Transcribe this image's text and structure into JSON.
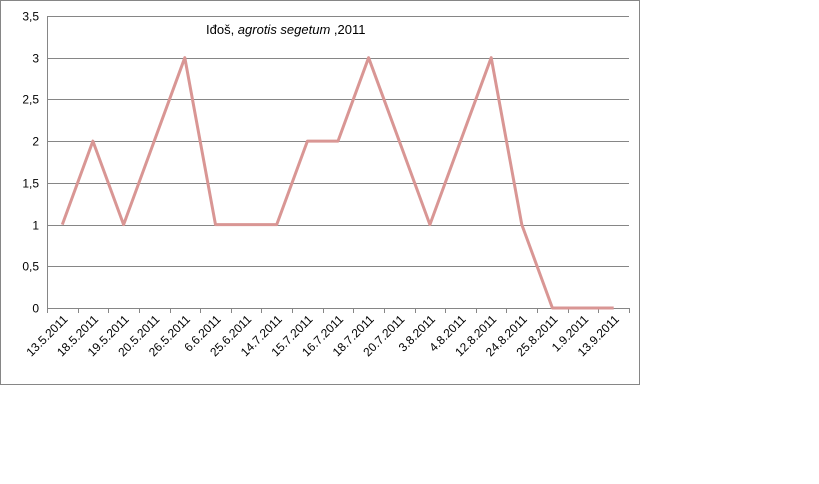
{
  "chart_data": {
    "type": "line",
    "title_prefix": "Iđoš, ",
    "title_italic": "agrotis segetum",
    "title_suffix": " ,2011",
    "categories": [
      "13.5.2011",
      "18.5.2011",
      "19.5.2011",
      "20.5.2011",
      "26.5.2011",
      "6.6.2011",
      "25.6.2011",
      "14.7.2011",
      "15.7.2011",
      "16.7.2011",
      "18.7.2011",
      "20.7.2011",
      "3.8.2011",
      "4.8.2011",
      "12.8.2011",
      "24.8.2011",
      "25.8.2011",
      "1.9.2011",
      "13.9.2011"
    ],
    "x": [
      "13.5.2011",
      "18.5.2011",
      "19.5.2011",
      "20.5.2011",
      "26.5.2011",
      "6.6.2011",
      "25.6.2011",
      "14.7.2011",
      "15.7.2011",
      "16.7.2011",
      "18.7.2011",
      "20.7.2011",
      "3.8.2011",
      "4.8.2011",
      "12.8.2011",
      "24.8.2011",
      "25.8.2011",
      "1.9.2011",
      "13.9.2011"
    ],
    "values": [
      1,
      2,
      1,
      2,
      3,
      1,
      1,
      1,
      2,
      2,
      3,
      2,
      1,
      2,
      3,
      1,
      0,
      0,
      0
    ],
    "ylim": [
      0,
      3.5
    ],
    "yticks": [
      "0",
      "0,5",
      "1",
      "1,5",
      "2",
      "2,5",
      "3",
      "3,5"
    ],
    "ytick_values": [
      0,
      0.5,
      1,
      1.5,
      2,
      2.5,
      3,
      3.5
    ],
    "grid": true,
    "legend": "none",
    "xlabel": "",
    "ylabel": "",
    "color": "#d99694"
  }
}
